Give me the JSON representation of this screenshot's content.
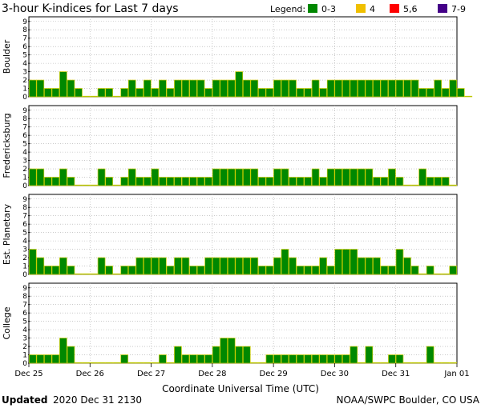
{
  "title": "3-hour K-indices for Last 7 days",
  "legend": {
    "label": "Legend:",
    "items": [
      {
        "label": "0-3",
        "color": "#008800"
      },
      {
        "label": "4",
        "color": "#f0c000"
      },
      {
        "label": "5,6",
        "color": "#ff0000"
      },
      {
        "label": "7-9",
        "color": "#440088"
      }
    ]
  },
  "footer": {
    "updated_label": "Updated",
    "updated_value": "2020 Dec 31 2130",
    "source": "NOAA/SWPC Boulder, CO USA"
  },
  "chart_data": {
    "type": "bar",
    "xlabel": "Coordinate Universal Time (UTC)",
    "x_tick_labels": [
      "Dec 25",
      "Dec 26",
      "Dec 27",
      "Dec 28",
      "Dec 29",
      "Dec 30",
      "Dec 31",
      "Jan 01"
    ],
    "y_ticks": [
      "0",
      "1",
      "2",
      "3",
      "4",
      "5",
      "6",
      "7",
      "8",
      "9"
    ],
    "ylim": [
      0,
      9
    ],
    "intervals_per_day": 8,
    "bar_color": "#008800",
    "bar_edge_color": "#cccc00",
    "series": [
      {
        "name": "Boulder",
        "values": [
          2,
          2,
          1,
          1,
          3,
          2,
          1,
          0,
          0,
          1,
          1,
          0,
          1,
          2,
          1,
          2,
          1,
          2,
          1,
          2,
          2,
          2,
          2,
          1,
          2,
          2,
          2,
          3,
          2,
          2,
          1,
          1,
          2,
          2,
          2,
          1,
          1,
          2,
          1,
          2,
          2,
          2,
          2,
          2,
          2,
          2,
          2,
          2,
          2,
          2,
          2,
          1,
          1,
          2,
          1,
          2,
          1,
          0
        ]
      },
      {
        "name": "Fredericksburg",
        "values": [
          2,
          2,
          1,
          1,
          2,
          1,
          0,
          0,
          0,
          2,
          1,
          0,
          1,
          2,
          1,
          1,
          2,
          1,
          1,
          1,
          1,
          1,
          1,
          1,
          2,
          2,
          2,
          2,
          2,
          2,
          1,
          1,
          2,
          2,
          1,
          1,
          1,
          2,
          1,
          2,
          2,
          2,
          2,
          2,
          2,
          1,
          1,
          2,
          1,
          0,
          0,
          2,
          1,
          1,
          1,
          0
        ]
      },
      {
        "name": "Est. Planetary",
        "values": [
          3,
          2,
          1,
          1,
          2,
          1,
          0,
          0,
          0,
          2,
          1,
          0,
          1,
          1,
          2,
          2,
          2,
          2,
          1,
          2,
          2,
          1,
          1,
          2,
          2,
          2,
          2,
          2,
          2,
          2,
          1,
          1,
          2,
          3,
          2,
          1,
          1,
          1,
          2,
          1,
          3,
          3,
          3,
          2,
          2,
          2,
          1,
          1,
          3,
          2,
          1,
          0,
          1,
          0,
          0,
          1
        ]
      },
      {
        "name": "College",
        "values": [
          1,
          1,
          1,
          1,
          3,
          2,
          0,
          0,
          0,
          0,
          0,
          0,
          1,
          0,
          0,
          0,
          0,
          1,
          0,
          2,
          1,
          1,
          1,
          1,
          2,
          3,
          3,
          2,
          2,
          0,
          0,
          1,
          1,
          1,
          1,
          1,
          1,
          1,
          1,
          1,
          1,
          1,
          2,
          0,
          2,
          0,
          0,
          1,
          1,
          0,
          0,
          0,
          2,
          0,
          0,
          0
        ]
      }
    ]
  }
}
